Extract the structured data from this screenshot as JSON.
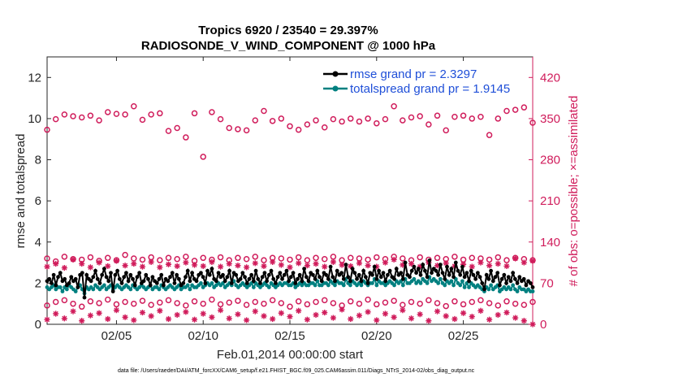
{
  "colors": {
    "rmse": "#000000",
    "spread": "#008080",
    "obs": "#d01c5b",
    "legend_text": "#1f4fd8",
    "axis": "#262626"
  },
  "chart_data": {
    "type": "line",
    "title_line1": "Tropics 6920 / 23540 = 29.397%",
    "title_line2": "RADIOSONDE_V_WIND_COMPONENT @ 1000 hPa",
    "xlabel": "Feb.01,2014 00:00:00 start",
    "ylabel_left": "rmse and totalspread",
    "ylabel_right": "# of obs: o=possible; ×=assimilated",
    "x_range": [
      1,
      29
    ],
    "xticks": [
      5,
      10,
      15,
      20,
      25
    ],
    "xtick_labels": [
      "02/05",
      "02/10",
      "02/15",
      "02/20",
      "02/25"
    ],
    "ylim_left": [
      0,
      13
    ],
    "yticks_left": [
      0,
      2,
      4,
      6,
      8,
      10,
      12
    ],
    "ylim_right": [
      0,
      455
    ],
    "yticks_right": [
      0,
      70,
      140,
      210,
      280,
      350,
      420
    ],
    "legend": [
      {
        "label": "rmse grand pr = 2.3297",
        "series": "rmse"
      },
      {
        "label": "totalspread grand pr = 1.9145",
        "series": "spread"
      }
    ],
    "rmse": [
      2.1,
      2.2,
      2.0,
      2.4,
      1.9,
      2.3,
      2.5,
      2.1,
      2.2,
      1.9,
      2.0,
      2.3,
      2.1,
      2.2,
      1.8,
      2.4,
      2.5,
      1.3,
      2.4,
      2.2,
      2.1,
      2.3,
      2.6,
      2.2,
      2.0,
      2.4,
      2.7,
      2.3,
      2.1,
      2.5,
      1.6,
      2.4,
      2.6,
      2.2,
      2.0,
      2.3,
      2.5,
      2.1,
      2.4,
      2.2,
      1.9,
      2.3,
      2.5,
      2.0,
      2.1,
      2.4,
      2.2,
      1.9,
      2.3,
      2.1,
      2.0,
      2.2,
      2.4,
      1.9,
      2.2,
      2.1,
      2.3,
      2.5,
      2.0,
      2.4,
      2.2,
      1.9,
      2.0,
      2.3,
      2.6,
      2.1,
      2.5,
      2.2,
      2.1,
      2.4,
      2.5,
      2.3,
      2.0,
      2.6,
      2.4,
      2.7,
      2.2,
      2.1,
      2.5,
      2.3,
      2.4,
      2.1,
      2.3,
      2.6,
      2.0,
      2.5,
      2.4,
      2.1,
      2.2,
      2.5,
      2.3,
      2.0,
      2.2,
      2.4,
      2.1,
      2.6,
      2.2,
      2.0,
      2.3,
      2.5,
      2.1,
      2.4,
      2.6,
      2.2,
      2.0,
      2.3,
      2.5,
      2.2,
      2.4,
      2.6,
      2.1,
      2.3,
      2.5,
      2.0,
      2.2,
      2.4,
      2.1,
      2.7,
      2.3,
      2.1,
      2.5,
      2.4,
      2.2,
      2.6,
      2.3,
      2.1,
      2.5,
      2.4,
      2.2,
      2.8,
      2.3,
      2.1,
      2.6,
      2.4,
      2.5,
      2.2,
      2.9,
      2.3,
      2.1,
      2.7,
      2.5,
      2.2,
      2.4,
      2.1,
      2.6,
      2.3,
      2.0,
      2.5,
      2.4,
      2.8,
      2.2,
      2.6,
      2.3,
      2.5,
      2.1,
      2.4,
      2.6,
      2.3,
      2.2,
      2.7,
      2.4,
      2.5,
      2.2,
      3.0,
      2.4,
      2.3,
      2.6,
      2.8,
      2.5,
      2.7,
      2.4,
      2.9,
      2.6,
      2.3,
      3.1,
      2.5,
      2.7,
      2.6,
      2.4,
      2.9,
      2.5,
      2.2,
      2.8,
      2.4,
      2.7,
      2.3,
      3.0,
      2.6,
      2.4,
      2.8,
      2.3,
      2.5,
      2.1,
      2.6,
      2.4,
      2.2,
      2.5,
      2.3,
      2.0,
      1.7,
      2.4,
      2.2,
      2.6,
      2.1,
      2.3,
      2.5,
      1.9,
      2.2,
      2.4,
      2.0,
      2.3,
      2.1,
      2.5,
      2.2,
      2.0,
      2.3,
      2.1,
      2.2,
      1.9,
      2.1,
      2.0,
      1.8
    ],
    "totalspread": [
      1.8,
      1.7,
      1.8,
      1.9,
      1.7,
      1.8,
      1.8,
      1.6,
      1.8,
      1.7,
      1.9,
      1.8,
      1.7,
      1.6,
      1.8,
      1.9,
      1.7,
      1.5,
      1.8,
      1.7,
      1.8,
      1.7,
      1.9,
      1.8,
      1.7,
      1.8,
      1.9,
      1.7,
      1.8,
      1.9,
      1.7,
      1.8,
      1.9,
      1.8,
      1.7,
      1.8,
      1.9,
      1.8,
      1.7,
      1.9,
      1.8,
      1.7,
      1.8,
      1.9,
      1.8,
      1.7,
      1.8,
      1.9,
      1.7,
      1.8,
      1.8,
      1.7,
      1.9,
      1.8,
      1.7,
      1.8,
      1.9,
      1.8,
      1.7,
      1.8,
      1.9,
      1.7,
      1.8,
      1.8,
      1.9,
      1.7,
      1.9,
      1.8,
      1.8,
      1.9,
      2.0,
      1.8,
      1.9,
      2.0,
      1.9,
      2.0,
      1.8,
      1.9,
      2.0,
      1.9,
      2.0,
      1.8,
      1.9,
      2.0,
      1.9,
      2.1,
      1.9,
      1.8,
      1.9,
      2.0,
      1.9,
      1.8,
      1.9,
      2.0,
      1.8,
      2.0,
      1.9,
      1.8,
      1.9,
      2.0,
      1.9,
      1.8,
      2.0,
      1.9,
      1.8,
      1.9,
      2.0,
      1.9,
      2.0,
      2.0,
      1.9,
      1.9,
      2.0,
      1.8,
      1.9,
      2.0,
      1.9,
      2.0,
      1.9,
      1.9,
      2.0,
      2.0,
      1.9,
      2.1,
      1.9,
      1.9,
      2.0,
      2.0,
      1.9,
      2.1,
      2.0,
      1.9,
      2.1,
      2.0,
      2.0,
      1.9,
      2.2,
      2.0,
      1.9,
      2.1,
      2.0,
      1.9,
      2.0,
      1.9,
      2.1,
      2.0,
      1.9,
      2.0,
      2.0,
      2.2,
      1.9,
      2.1,
      2.0,
      2.0,
      1.9,
      2.0,
      2.1,
      2.0,
      1.9,
      2.1,
      2.0,
      2.1,
      1.9,
      2.2,
      2.0,
      2.0,
      2.1,
      2.2,
      2.0,
      2.1,
      2.0,
      2.2,
      2.1,
      2.0,
      2.3,
      2.1,
      2.2,
      2.1,
      2.0,
      2.2,
      2.0,
      1.9,
      2.1,
      2.0,
      2.1,
      1.9,
      2.2,
      2.0,
      1.9,
      2.1,
      1.8,
      2.0,
      1.8,
      2.0,
      1.9,
      1.8,
      1.9,
      1.8,
      1.7,
      1.6,
      1.8,
      1.7,
      1.9,
      1.7,
      1.8,
      1.9,
      1.6,
      1.7,
      1.8,
      1.7,
      1.8,
      1.7,
      1.9,
      1.7,
      1.6,
      1.8,
      1.7,
      1.7,
      1.6,
      1.7,
      1.6,
      1.6
    ],
    "obs_possible_high": [
      [
        1.0,
        331
      ],
      [
        1.5,
        349
      ],
      [
        2.0,
        357
      ],
      [
        2.5,
        354
      ],
      [
        3.0,
        352
      ],
      [
        3.5,
        355
      ],
      [
        4.0,
        347
      ],
      [
        4.5,
        361
      ],
      [
        5.0,
        358
      ],
      [
        5.5,
        357
      ],
      [
        6.0,
        371
      ],
      [
        6.5,
        348
      ],
      [
        7.0,
        357
      ],
      [
        7.5,
        359
      ],
      [
        8.0,
        329
      ],
      [
        8.5,
        334
      ],
      [
        9.0,
        318
      ],
      [
        9.5,
        359
      ],
      [
        10.0,
        285
      ],
      [
        10.5,
        361
      ],
      [
        11.0,
        349
      ],
      [
        11.5,
        334
      ],
      [
        12.0,
        332
      ],
      [
        12.5,
        330
      ],
      [
        13.0,
        347
      ],
      [
        13.5,
        363
      ],
      [
        14.0,
        346
      ],
      [
        14.5,
        350
      ],
      [
        15.0,
        337
      ],
      [
        15.5,
        331
      ],
      [
        16.0,
        340
      ],
      [
        16.5,
        347
      ],
      [
        17.0,
        335
      ],
      [
        17.5,
        349
      ],
      [
        18.0,
        345
      ],
      [
        18.5,
        350
      ],
      [
        19.0,
        345
      ],
      [
        19.5,
        350
      ],
      [
        20.0,
        342
      ],
      [
        20.5,
        349
      ],
      [
        21.0,
        371
      ],
      [
        21.5,
        347
      ],
      [
        22.0,
        352
      ],
      [
        22.5,
        354
      ],
      [
        23.0,
        340
      ],
      [
        23.5,
        355
      ],
      [
        24.0,
        330
      ],
      [
        24.5,
        353
      ],
      [
        25.0,
        355
      ],
      [
        25.5,
        350
      ],
      [
        26.0,
        353
      ],
      [
        26.5,
        322
      ],
      [
        27.0,
        350
      ],
      [
        27.5,
        363
      ],
      [
        28.0,
        365
      ],
      [
        28.5,
        369
      ],
      [
        29.0,
        343
      ]
    ],
    "obs_assim_upper": [
      [
        1.0,
        98
      ],
      [
        1.5,
        103
      ],
      [
        2.0,
        96
      ],
      [
        2.5,
        110
      ],
      [
        3.0,
        103
      ],
      [
        3.5,
        97
      ],
      [
        4.0,
        105
      ],
      [
        4.5,
        99
      ],
      [
        5.0,
        108
      ],
      [
        5.5,
        100
      ],
      [
        6.0,
        103
      ],
      [
        6.5,
        98
      ],
      [
        7.0,
        106
      ],
      [
        7.5,
        97
      ],
      [
        8.0,
        102
      ],
      [
        8.5,
        99
      ],
      [
        9.0,
        105
      ],
      [
        9.5,
        101
      ],
      [
        10.0,
        99
      ],
      [
        10.5,
        106
      ],
      [
        11.0,
        98
      ],
      [
        11.5,
        103
      ],
      [
        12.0,
        100
      ],
      [
        12.5,
        97
      ],
      [
        13.0,
        104
      ],
      [
        13.5,
        99
      ],
      [
        14.0,
        106
      ],
      [
        14.5,
        101
      ],
      [
        15.0,
        97
      ],
      [
        15.5,
        104
      ],
      [
        16.0,
        100
      ],
      [
        16.5,
        103
      ],
      [
        17.0,
        98
      ],
      [
        17.5,
        106
      ],
      [
        18.0,
        101
      ],
      [
        18.5,
        99
      ],
      [
        19.0,
        104
      ],
      [
        19.5,
        100
      ],
      [
        20.0,
        98
      ],
      [
        20.5,
        105
      ],
      [
        21.0,
        110
      ],
      [
        21.5,
        101
      ],
      [
        22.0,
        103
      ],
      [
        22.5,
        98
      ],
      [
        23.0,
        105
      ],
      [
        23.5,
        100
      ],
      [
        24.0,
        104
      ],
      [
        24.5,
        99
      ],
      [
        25.0,
        102
      ],
      [
        25.5,
        98
      ],
      [
        26.0,
        105
      ],
      [
        26.5,
        100
      ],
      [
        27.0,
        103
      ],
      [
        27.5,
        99
      ],
      [
        28.0,
        112
      ],
      [
        28.5,
        105
      ],
      [
        29.0,
        108
      ]
    ],
    "obs_possible_upper": [
      [
        1.0,
        112
      ],
      [
        1.5,
        107
      ],
      [
        2.0,
        115
      ],
      [
        2.5,
        111
      ],
      [
        3.0,
        110
      ],
      [
        3.5,
        114
      ],
      [
        4.0,
        108
      ],
      [
        4.5,
        113
      ],
      [
        5.0,
        109
      ],
      [
        5.5,
        118
      ],
      [
        6.0,
        112
      ],
      [
        6.5,
        110
      ],
      [
        7.0,
        114
      ],
      [
        7.5,
        109
      ],
      [
        8.0,
        113
      ],
      [
        8.5,
        111
      ],
      [
        9.0,
        115
      ],
      [
        9.5,
        108
      ],
      [
        10.0,
        113
      ],
      [
        10.5,
        110
      ],
      [
        11.0,
        114
      ],
      [
        11.5,
        109
      ],
      [
        12.0,
        113
      ],
      [
        12.5,
        111
      ],
      [
        13.0,
        115
      ],
      [
        13.5,
        109
      ],
      [
        14.0,
        113
      ],
      [
        14.5,
        112
      ],
      [
        15.0,
        110
      ],
      [
        15.5,
        114
      ],
      [
        16.0,
        109
      ],
      [
        16.5,
        113
      ],
      [
        17.0,
        111
      ],
      [
        17.5,
        115
      ],
      [
        18.0,
        109
      ],
      [
        18.5,
        113
      ],
      [
        19.0,
        112
      ],
      [
        19.5,
        110
      ],
      [
        20.0,
        114
      ],
      [
        20.5,
        111
      ],
      [
        21.0,
        115
      ],
      [
        21.5,
        112
      ],
      [
        22.0,
        109
      ],
      [
        22.5,
        114
      ],
      [
        23.0,
        110
      ],
      [
        23.5,
        113
      ],
      [
        24.0,
        111
      ],
      [
        24.5,
        115
      ],
      [
        25.0,
        110
      ],
      [
        25.5,
        113
      ],
      [
        26.0,
        112
      ],
      [
        26.5,
        110
      ],
      [
        27.0,
        114
      ],
      [
        27.5,
        109
      ],
      [
        28.0,
        113
      ],
      [
        28.5,
        111
      ],
      [
        29.0,
        109
      ]
    ],
    "obs_possible_low": [
      [
        1.0,
        32
      ],
      [
        1.5,
        38
      ],
      [
        2.0,
        41
      ],
      [
        2.5,
        35
      ],
      [
        3.0,
        30
      ],
      [
        3.5,
        39
      ],
      [
        4.0,
        36
      ],
      [
        4.5,
        42
      ],
      [
        5.0,
        34
      ],
      [
        5.5,
        38
      ],
      [
        6.0,
        35
      ],
      [
        6.5,
        40
      ],
      [
        7.0,
        33
      ],
      [
        7.5,
        37
      ],
      [
        8.0,
        41
      ],
      [
        8.5,
        36
      ],
      [
        9.0,
        32
      ],
      [
        9.5,
        39
      ],
      [
        10.0,
        35
      ],
      [
        10.5,
        42
      ],
      [
        11.0,
        34
      ],
      [
        11.5,
        37
      ],
      [
        12.0,
        40
      ],
      [
        12.5,
        33
      ],
      [
        13.0,
        38
      ],
      [
        13.5,
        35
      ],
      [
        14.0,
        41
      ],
      [
        14.5,
        36
      ],
      [
        15.0,
        30
      ],
      [
        15.5,
        39
      ],
      [
        16.0,
        34
      ],
      [
        16.5,
        38
      ],
      [
        17.0,
        41
      ],
      [
        17.5,
        36
      ],
      [
        18.0,
        32
      ],
      [
        18.5,
        39
      ],
      [
        19.0,
        35
      ],
      [
        19.5,
        42
      ],
      [
        20.0,
        34
      ],
      [
        20.5,
        37
      ],
      [
        21.0,
        40
      ],
      [
        21.5,
        33
      ],
      [
        22.0,
        38
      ],
      [
        22.5,
        35
      ],
      [
        23.0,
        41
      ],
      [
        23.5,
        36
      ],
      [
        24.0,
        31
      ],
      [
        24.5,
        39
      ],
      [
        25.0,
        34
      ],
      [
        25.5,
        38
      ],
      [
        26.0,
        41
      ],
      [
        26.5,
        36
      ],
      [
        27.0,
        32
      ],
      [
        27.5,
        39
      ],
      [
        28.0,
        35
      ],
      [
        28.5,
        33
      ],
      [
        29.0,
        38
      ]
    ],
    "obs_assim_low": [
      [
        1.0,
        8
      ],
      [
        1.5,
        18
      ],
      [
        2.0,
        10
      ],
      [
        2.5,
        22
      ],
      [
        3.0,
        6
      ],
      [
        3.5,
        15
      ],
      [
        4.0,
        19
      ],
      [
        4.5,
        9
      ],
      [
        5.0,
        24
      ],
      [
        5.5,
        12
      ],
      [
        6.0,
        7
      ],
      [
        6.5,
        20
      ],
      [
        7.0,
        14
      ],
      [
        7.5,
        23
      ],
      [
        8.0,
        9
      ],
      [
        8.5,
        16
      ],
      [
        9.0,
        21
      ],
      [
        9.5,
        8
      ],
      [
        10.0,
        18
      ],
      [
        10.5,
        12
      ],
      [
        11.0,
        24
      ],
      [
        11.5,
        10
      ],
      [
        12.0,
        17
      ],
      [
        12.5,
        7
      ],
      [
        13.0,
        22
      ],
      [
        13.5,
        14
      ],
      [
        14.0,
        9
      ],
      [
        14.5,
        19
      ],
      [
        15.0,
        13
      ],
      [
        15.5,
        23
      ],
      [
        16.0,
        8
      ],
      [
        16.5,
        16
      ],
      [
        17.0,
        20
      ],
      [
        17.5,
        11
      ],
      [
        18.0,
        25
      ],
      [
        18.5,
        9
      ],
      [
        19.0,
        15
      ],
      [
        19.5,
        21
      ],
      [
        20.0,
        7
      ],
      [
        20.5,
        18
      ],
      [
        21.0,
        12
      ],
      [
        21.5,
        24
      ],
      [
        22.0,
        10
      ],
      [
        22.5,
        17
      ],
      [
        23.0,
        6
      ],
      [
        23.5,
        22
      ],
      [
        24.0,
        14
      ],
      [
        24.5,
        9
      ],
      [
        25.0,
        19
      ],
      [
        25.5,
        13
      ],
      [
        26.0,
        23
      ],
      [
        26.5,
        8
      ],
      [
        27.0,
        16
      ],
      [
        27.5,
        20
      ],
      [
        28.0,
        11
      ],
      [
        28.5,
        6
      ],
      [
        29.0,
        0
      ]
    ]
  },
  "footer": "data file: /Users/raeder/DAI/ATM_forcXX/CAM6_setup/f.e21.FHIST_BGC.f09_025.CAM6assim.011/Diags_NTrS_2014-02/obs_diag_output.nc"
}
